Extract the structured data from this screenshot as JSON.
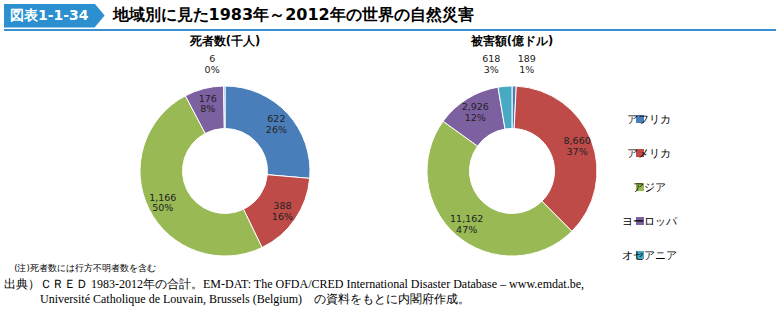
{
  "figure_label": "図表1-1-34",
  "title": "地域別に見た1983年～2012年の世界の自然災害",
  "chart_data": [
    {
      "type": "donut",
      "title": "死者数(千人)",
      "categories": [
        "アフリカ",
        "アメリカ",
        "アジア",
        "ヨーロッパ",
        "オセアニア"
      ],
      "values": [
        622,
        388,
        1166,
        176,
        6
      ],
      "value_labels": [
        "622",
        "388",
        "1,166",
        "176",
        "6"
      ],
      "percents": [
        26,
        16,
        50,
        8,
        0
      ],
      "percent_labels": [
        "26%",
        "16%",
        "50%",
        "8%",
        "0%"
      ],
      "colors": [
        "#4a7ebb",
        "#be4b48",
        "#98b954",
        "#7d60a0",
        "#46aac5"
      ],
      "data_labels": true,
      "note": "(注)死者数には行方不明者数を含む"
    },
    {
      "type": "donut",
      "title": "被害額(億ドル)",
      "categories": [
        "アフリカ",
        "アメリカ",
        "アジア",
        "ヨーロッパ",
        "オセアニア"
      ],
      "values": [
        189,
        8660,
        11162,
        2926,
        618
      ],
      "value_labels": [
        "189",
        "8,660",
        "11,162",
        "2,926",
        "618"
      ],
      "percents": [
        1,
        37,
        47,
        12,
        3
      ],
      "percent_labels": [
        "1%",
        "37%",
        "47%",
        "12%",
        "3%"
      ],
      "colors": [
        "#4a7ebb",
        "#be4b48",
        "#98b954",
        "#7d60a0",
        "#46aac5"
      ],
      "data_labels": true,
      "legend": "right"
    }
  ],
  "source": [
    "出典）ＣＲＥＤ 1983-2012年の合計。EM-DAT: The OFDA/CRED International Disaster Database – www.emdat.be,",
    "Université Catholique de Louvain, Brussels (Belgium)　の資料をもとに内閣府作成。"
  ]
}
